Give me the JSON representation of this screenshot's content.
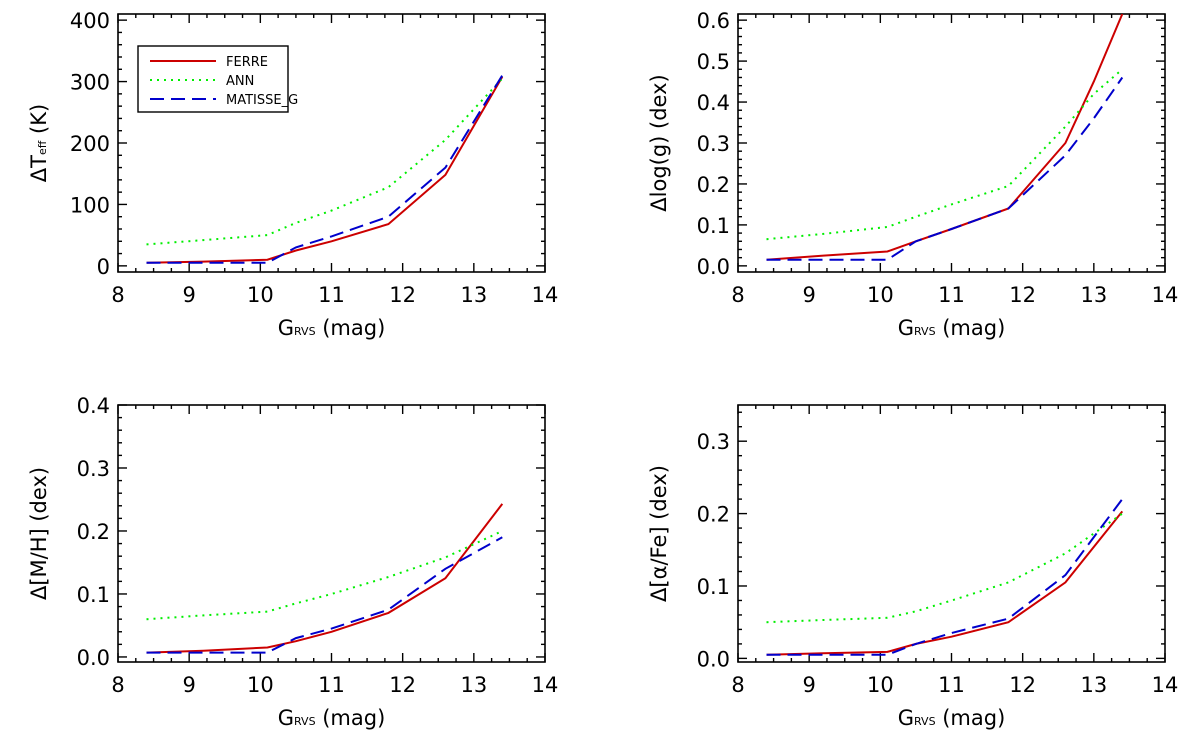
{
  "chart_data": [
    {
      "type": "line",
      "title": "",
      "xlabel": "G",
      "xlabel_sub": "RVS",
      "xlabel_suffix": " (mag)",
      "ylabel_prefix": "ΔT",
      "ylabel_sub": "eff",
      "ylabel_suffix": " (K)",
      "xlim": [
        8,
        14
      ],
      "ylim": [
        -10,
        410
      ],
      "xticks": [
        8,
        9,
        10,
        11,
        12,
        13,
        14
      ],
      "yticks": [
        0,
        100,
        200,
        300,
        400
      ],
      "ytick_labels": [
        "0",
        "100",
        "200",
        "300",
        "400"
      ],
      "legend": "top-left",
      "series": [
        {
          "name": "FERRE",
          "color": "#cc0000",
          "dash": "solid",
          "x": [
            8.4,
            9.2,
            10.1,
            10.5,
            11.0,
            11.8,
            12.6,
            13.4
          ],
          "y": [
            5,
            7,
            10,
            25,
            40,
            68,
            148,
            308
          ]
        },
        {
          "name": "ANN",
          "color": "#00ee00",
          "dash": "dot",
          "x": [
            8.4,
            9.2,
            10.1,
            10.5,
            11.0,
            11.8,
            12.6,
            13.4
          ],
          "y": [
            35,
            42,
            50,
            70,
            90,
            128,
            205,
            305
          ]
        },
        {
          "name": "MATISSE_G",
          "color": "#0000cc",
          "dash": "dash",
          "x": [
            8.4,
            9.2,
            10.1,
            10.5,
            11.0,
            11.8,
            12.6,
            13.4
          ],
          "y": [
            5,
            5,
            5,
            30,
            48,
            80,
            160,
            310
          ]
        }
      ]
    },
    {
      "type": "line",
      "title": "",
      "xlabel": "G",
      "xlabel_sub": "RVS",
      "xlabel_suffix": " (mag)",
      "ylabel_prefix": "Δlog(g) (dex)",
      "ylabel_sub": "",
      "ylabel_suffix": "",
      "xlim": [
        8,
        14
      ],
      "ylim": [
        -0.015,
        0.615
      ],
      "xticks": [
        8,
        9,
        10,
        11,
        12,
        13,
        14
      ],
      "yticks": [
        0,
        0.1,
        0.2,
        0.3,
        0.4,
        0.5,
        0.6
      ],
      "ytick_labels": [
        "0.0",
        "0.1",
        "0.2",
        "0.3",
        "0.4",
        "0.5",
        "0.6"
      ],
      "series": [
        {
          "name": "FERRE",
          "color": "#cc0000",
          "dash": "solid",
          "x": [
            8.4,
            9.2,
            10.1,
            10.5,
            11.0,
            11.8,
            12.6,
            13.0,
            13.4
          ],
          "y": [
            0.015,
            0.025,
            0.035,
            0.06,
            0.09,
            0.14,
            0.3,
            0.45,
            0.615
          ]
        },
        {
          "name": "ANN",
          "color": "#00ee00",
          "dash": "dot",
          "x": [
            8.4,
            9.2,
            10.1,
            10.5,
            11.0,
            11.8,
            12.6,
            13.0,
            13.4
          ],
          "y": [
            0.065,
            0.078,
            0.095,
            0.12,
            0.15,
            0.195,
            0.34,
            0.42,
            0.48
          ]
        },
        {
          "name": "MATISSE_G",
          "color": "#0000cc",
          "dash": "dash",
          "x": [
            8.4,
            9.2,
            10.1,
            10.5,
            11.0,
            11.8,
            12.6,
            13.0,
            13.4
          ],
          "y": [
            0.015,
            0.015,
            0.015,
            0.06,
            0.09,
            0.14,
            0.27,
            0.36,
            0.46
          ]
        }
      ]
    },
    {
      "type": "line",
      "title": "",
      "xlabel": "G",
      "xlabel_sub": "RVS",
      "xlabel_suffix": " (mag)",
      "ylabel_prefix": "Δ[M/H] (dex)",
      "ylabel_sub": "",
      "ylabel_suffix": "",
      "xlim": [
        8,
        14
      ],
      "ylim": [
        -0.008,
        0.4
      ],
      "xticks": [
        8,
        9,
        10,
        11,
        12,
        13,
        14
      ],
      "yticks": [
        0,
        0.1,
        0.2,
        0.3,
        0.4
      ],
      "ytick_labels": [
        "0.0",
        "0.1",
        "0.2",
        "0.3",
        "0.4"
      ],
      "series": [
        {
          "name": "FERRE",
          "color": "#cc0000",
          "dash": "solid",
          "x": [
            8.4,
            9.2,
            10.1,
            10.5,
            11.0,
            11.8,
            12.6,
            13.4
          ],
          "y": [
            0.007,
            0.01,
            0.015,
            0.025,
            0.04,
            0.07,
            0.125,
            0.243
          ]
        },
        {
          "name": "ANN",
          "color": "#00ee00",
          "dash": "dot",
          "x": [
            8.4,
            9.2,
            10.1,
            10.5,
            11.0,
            11.8,
            12.6,
            13.4
          ],
          "y": [
            0.06,
            0.066,
            0.072,
            0.085,
            0.1,
            0.127,
            0.158,
            0.2
          ]
        },
        {
          "name": "MATISSE_G",
          "color": "#0000cc",
          "dash": "dash",
          "x": [
            8.4,
            9.2,
            10.1,
            10.5,
            11.0,
            11.8,
            12.6,
            13.4
          ],
          "y": [
            0.007,
            0.007,
            0.007,
            0.03,
            0.045,
            0.075,
            0.14,
            0.19
          ]
        }
      ]
    },
    {
      "type": "line",
      "title": "",
      "xlabel": "G",
      "xlabel_sub": "RVS",
      "xlabel_suffix": " (mag)",
      "ylabel_prefix": "Δ[α/Fe] (dex)",
      "ylabel_sub": "",
      "ylabel_suffix": "",
      "xlim": [
        8,
        14
      ],
      "ylim": [
        -0.005,
        0.35
      ],
      "xticks": [
        8,
        9,
        10,
        11,
        12,
        13,
        14
      ],
      "yticks": [
        0,
        0.1,
        0.2,
        0.3
      ],
      "ytick_labels": [
        "0.0",
        "0.1",
        "0.2",
        "0.3"
      ],
      "series": [
        {
          "name": "FERRE",
          "color": "#cc0000",
          "dash": "solid",
          "x": [
            8.4,
            9.2,
            10.1,
            10.5,
            11.0,
            11.8,
            12.6,
            13.4
          ],
          "y": [
            0.005,
            0.007,
            0.009,
            0.02,
            0.03,
            0.05,
            0.105,
            0.203
          ]
        },
        {
          "name": "ANN",
          "color": "#00ee00",
          "dash": "dot",
          "x": [
            8.4,
            9.2,
            10.1,
            10.5,
            11.0,
            11.8,
            12.6,
            13.4
          ],
          "y": [
            0.05,
            0.053,
            0.056,
            0.065,
            0.08,
            0.105,
            0.145,
            0.2
          ]
        },
        {
          "name": "MATISSE_G",
          "color": "#0000cc",
          "dash": "dash",
          "x": [
            8.4,
            9.2,
            10.1,
            10.5,
            11.0,
            11.8,
            12.6,
            13.4
          ],
          "y": [
            0.005,
            0.005,
            0.005,
            0.02,
            0.035,
            0.055,
            0.115,
            0.22
          ]
        }
      ]
    }
  ]
}
